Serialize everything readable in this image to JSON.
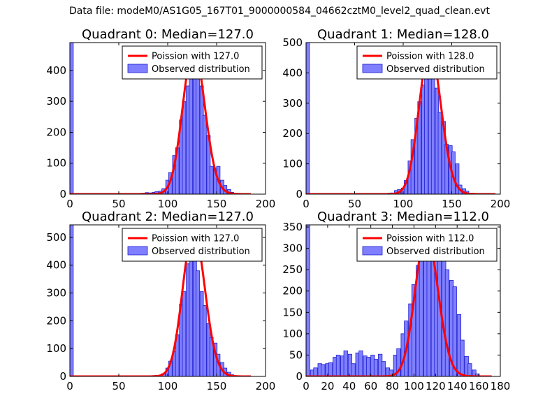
{
  "figure": {
    "suptitle": "Data file: modeM0/AS1G05_167T01_9000000584_04662cztM0_level2_quad_clean.evt"
  },
  "colors": {
    "hist_fill": "#7f7fff",
    "hist_edge": "#1f1fd0",
    "poisson_line": "#ff0000"
  },
  "chart_data": [
    {
      "type": "bar",
      "title": "Quadrant 0: Median=127.0",
      "xlim": [
        0,
        200
      ],
      "ylim": [
        0,
        490
      ],
      "xticks": [
        0,
        50,
        100,
        150,
        200
      ],
      "yticks": [
        0,
        100,
        200,
        300,
        400
      ],
      "legend": {
        "location": "upper-right",
        "entries": [
          "Poission with 127.0",
          "Observed distribution"
        ]
      },
      "median": 127,
      "poisson_peak": 470,
      "poisson_xmax": 185,
      "bin_width": 3.5,
      "bins": [
        [
          0,
          490
        ],
        [
          70,
          2
        ],
        [
          73,
          3
        ],
        [
          77,
          5
        ],
        [
          80,
          4
        ],
        [
          84,
          6
        ],
        [
          87,
          8
        ],
        [
          91,
          10
        ],
        [
          94,
          18
        ],
        [
          98,
          45
        ],
        [
          101,
          70
        ],
        [
          105,
          125
        ],
        [
          108,
          150
        ],
        [
          112,
          240
        ],
        [
          115,
          300
        ],
        [
          119,
          350
        ],
        [
          122,
          380
        ],
        [
          126,
          420
        ],
        [
          129,
          445
        ],
        [
          133,
          350
        ],
        [
          136,
          255
        ],
        [
          140,
          190
        ],
        [
          143,
          90
        ],
        [
          147,
          85
        ],
        [
          150,
          90
        ],
        [
          154,
          45
        ],
        [
          157,
          28
        ],
        [
          161,
          15
        ],
        [
          164,
          6
        ],
        [
          168,
          2
        ]
      ]
    },
    {
      "type": "bar",
      "title": "Quadrant 1: Median=128.0",
      "xlim": [
        0,
        200
      ],
      "ylim": [
        0,
        500
      ],
      "xticks": [
        0,
        50,
        100,
        150,
        200
      ],
      "yticks": [
        0,
        100,
        200,
        300,
        400,
        500
      ],
      "legend": {
        "location": "upper-right",
        "entries": [
          "Poission with 128.0",
          "Observed distribution"
        ]
      },
      "median": 128,
      "poisson_peak": 478,
      "poisson_xmax": 195,
      "bin_width": 3.5,
      "bins": [
        [
          0,
          500
        ],
        [
          80,
          2
        ],
        [
          84,
          3
        ],
        [
          87,
          4
        ],
        [
          91,
          12
        ],
        [
          94,
          15
        ],
        [
          98,
          20
        ],
        [
          101,
          45
        ],
        [
          105,
          110
        ],
        [
          108,
          180
        ],
        [
          112,
          250
        ],
        [
          115,
          305
        ],
        [
          119,
          360
        ],
        [
          122,
          400
        ],
        [
          126,
          440
        ],
        [
          129,
          380
        ],
        [
          133,
          350
        ],
        [
          136,
          270
        ],
        [
          140,
          240
        ],
        [
          143,
          165
        ],
        [
          147,
          160
        ],
        [
          150,
          140
        ],
        [
          154,
          100
        ],
        [
          157,
          30
        ],
        [
          161,
          18
        ],
        [
          164,
          10
        ],
        [
          168,
          3
        ]
      ]
    },
    {
      "type": "bar",
      "title": "Quadrant 2: Median=127.0",
      "xlim": [
        0,
        200
      ],
      "ylim": [
        0,
        545
      ],
      "xticks": [
        0,
        50,
        100,
        150,
        200
      ],
      "yticks": [
        0,
        100,
        200,
        300,
        400,
        500
      ],
      "legend": {
        "location": "upper-right",
        "entries": [
          "Poission with 127.0",
          "Observed distribution"
        ]
      },
      "median": 127,
      "poisson_peak": 525,
      "poisson_xmax": 185,
      "bin_width": 3.5,
      "bins": [
        [
          0,
          545
        ],
        [
          84,
          3
        ],
        [
          87,
          4
        ],
        [
          91,
          5
        ],
        [
          94,
          10
        ],
        [
          98,
          30
        ],
        [
          101,
          55
        ],
        [
          105,
          90
        ],
        [
          108,
          150
        ],
        [
          112,
          260
        ],
        [
          115,
          305
        ],
        [
          119,
          405
        ],
        [
          122,
          420
        ],
        [
          126,
          440
        ],
        [
          129,
          380
        ],
        [
          133,
          305
        ],
        [
          136,
          255
        ],
        [
          140,
          190
        ],
        [
          143,
          140
        ],
        [
          147,
          120
        ],
        [
          150,
          80
        ],
        [
          154,
          50
        ],
        [
          157,
          30
        ],
        [
          161,
          15
        ],
        [
          164,
          6
        ],
        [
          168,
          2
        ]
      ]
    },
    {
      "type": "bar",
      "title": "Quadrant 3: Median=112.0",
      "xlim": [
        0,
        180
      ],
      "ylim": [
        0,
        355
      ],
      "xticks": [
        0,
        20,
        40,
        60,
        80,
        100,
        120,
        140,
        160,
        180
      ],
      "yticks": [
        0,
        50,
        100,
        150,
        200,
        250,
        300,
        350
      ],
      "legend": {
        "location": "upper-right",
        "entries": [
          "Poission with 112.0",
          "Observed distribution"
        ]
      },
      "median": 112,
      "poisson_peak": 333,
      "poisson_xmax": 172,
      "bin_width": 3.5,
      "bins": [
        [
          0,
          355
        ],
        [
          4,
          15
        ],
        [
          7,
          20
        ],
        [
          11,
          30
        ],
        [
          14,
          28
        ],
        [
          18,
          30
        ],
        [
          21,
          32
        ],
        [
          25,
          45
        ],
        [
          28,
          50
        ],
        [
          32,
          48
        ],
        [
          35,
          60
        ],
        [
          39,
          52
        ],
        [
          42,
          30
        ],
        [
          46,
          55
        ],
        [
          49,
          60
        ],
        [
          53,
          48
        ],
        [
          56,
          45
        ],
        [
          60,
          50
        ],
        [
          63,
          40
        ],
        [
          67,
          52
        ],
        [
          70,
          35
        ],
        [
          74,
          20
        ],
        [
          77,
          15
        ],
        [
          81,
          50
        ],
        [
          84,
          65
        ],
        [
          88,
          100
        ],
        [
          91,
          130
        ],
        [
          95,
          170
        ],
        [
          98,
          215
        ],
        [
          102,
          260
        ],
        [
          105,
          285
        ],
        [
          109,
          330
        ],
        [
          112,
          320
        ],
        [
          116,
          310
        ],
        [
          119,
          315
        ],
        [
          122,
          345
        ],
        [
          126,
          315
        ],
        [
          129,
          250
        ],
        [
          133,
          225
        ],
        [
          136,
          210
        ],
        [
          140,
          145
        ],
        [
          143,
          85
        ],
        [
          147,
          47
        ],
        [
          150,
          30
        ],
        [
          154,
          15
        ],
        [
          157,
          6
        ]
      ]
    }
  ]
}
